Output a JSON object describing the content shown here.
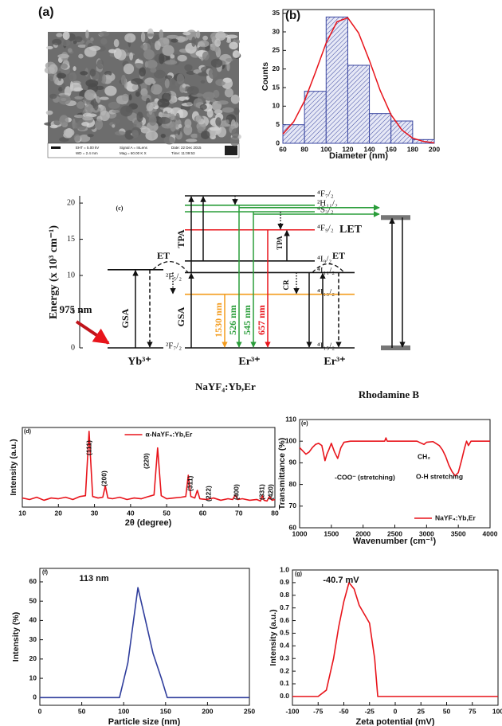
{
  "sem": {
    "label": "(a)",
    "info": [
      "EHT = 5.00 kV",
      "WD = 2.4 mm",
      "Signal A = InLens",
      "Mag = 60.00 K X",
      "Date: 22 Dec 2015",
      "Time: 11:09:53"
    ]
  },
  "energy_diagram": {
    "ylabel": "Energy (x 10³ cm⁻¹)",
    "ylim": [
      0,
      21
    ],
    "yticks": [
      0,
      5,
      10,
      15,
      20
    ],
    "levels": [
      {
        "column": "yb",
        "label": "²F₇/₂",
        "energy": 0,
        "color": "#111111"
      },
      {
        "column": "yb",
        "label": "²F₅/₂",
        "energy": 10.8,
        "color": "#111111"
      },
      {
        "column": "er",
        "label": "⁴I₁₅/₂",
        "energy": 0,
        "color": "#111111"
      },
      {
        "column": "er",
        "label": "⁴I₁₃/₂",
        "energy": 7.4,
        "color": "#f39c1e"
      },
      {
        "column": "er",
        "label": "⁴I₁₁/₂",
        "energy": 10.4,
        "color": "#111111"
      },
      {
        "column": "er",
        "label": "⁴I₉/₂",
        "energy": 12,
        "color": "#111111"
      },
      {
        "column": "er",
        "label": "⁴F₉/₂",
        "energy": 16.3,
        "color": "#e8141b"
      },
      {
        "column": "er",
        "label": "⁴S₃/₂",
        "energy": 18.8,
        "color": "#2a9d3a"
      },
      {
        "column": "er",
        "label": "²H₁₁/₂",
        "energy": 19.7,
        "color": "#2a9d3a"
      },
      {
        "column": "er",
        "label": "⁴F₇/₂",
        "energy": 21,
        "color": "#111111"
      },
      {
        "column": "er2",
        "energy": 0,
        "color": "#111111"
      },
      {
        "column": "er2",
        "energy": 7.4,
        "color": "#f39c1e"
      },
      {
        "column": "er2",
        "energy": 10.4,
        "color": "#111111"
      },
      {
        "column": "rh",
        "energy": 0,
        "color": "#777777"
      },
      {
        "column": "rh",
        "energy": 18,
        "color": "#777777"
      }
    ],
    "texts": [
      "(c)",
      "ET",
      "ET",
      "GSA",
      "GSA",
      "TPA",
      "TPA",
      "LET",
      "CR",
      "975 nm",
      "Yb³⁺",
      "Er³⁺",
      "Er³⁺",
      "NaYF₄:Yb,Er",
      "Rhodamine B"
    ],
    "emission_labels": [
      {
        "text": "1530 nm",
        "color": "#f39c1e"
      },
      {
        "text": "526 nm",
        "color": "#2a9d3a"
      },
      {
        "text": "545 nm",
        "color": "#2a9d3a"
      },
      {
        "text": "657 nm",
        "color": "#e8141b"
      }
    ]
  },
  "chart_data": [
    {
      "type": "histogram",
      "panel": "(b)",
      "xlabel": "Diameter (nm)",
      "ylabel": "Counts",
      "bins": [
        60,
        80,
        100,
        120,
        140,
        160,
        180,
        200
      ],
      "values": [
        5,
        14,
        34,
        21,
        8,
        6,
        1
      ],
      "color": "#3a46a0",
      "fit": {
        "x": [
          60,
          70,
          80,
          90,
          100,
          110,
          120,
          130,
          140,
          150,
          160,
          170,
          180,
          190,
          200
        ],
        "values": [
          2.5,
          5.8,
          11.4,
          19,
          27,
          32.7,
          33.8,
          29.7,
          22.3,
          14.2,
          7.7,
          3.6,
          1.4,
          0.5,
          0.1
        ],
        "color": "#e8141b"
      },
      "xlim": [
        60,
        200
      ],
      "xticks": [
        60,
        80,
        100,
        120,
        140,
        160,
        180,
        200
      ],
      "ylim": [
        0,
        36
      ],
      "yticks": [
        0,
        5,
        10,
        15,
        20,
        25,
        30,
        35
      ]
    },
    {
      "type": "line",
      "panel": "(d)",
      "xlabel": "2θ (degree)",
      "ylabel": "Intensity (a.u.)",
      "x": [
        10,
        12,
        14,
        16,
        18,
        20,
        22,
        24,
        26,
        27.5,
        28.5,
        29.5,
        31,
        32.3,
        33,
        33.7,
        35,
        37,
        39,
        41,
        43,
        45,
        46.5,
        47.5,
        48.5,
        50,
        52,
        54,
        55.3,
        56,
        56.7,
        57.8,
        58.5,
        59.2,
        61,
        63,
        65,
        67,
        68.3,
        69,
        69.7,
        71,
        73,
        75,
        76,
        76.5,
        77,
        77.8,
        78.5,
        79.2,
        80
      ],
      "series": [
        {
          "name": "α-NaYF₄:Yb,Er",
          "color": "#e8141b",
          "values": [
            12,
            10,
            13,
            9,
            12,
            11,
            13,
            10,
            14,
            15,
            100,
            14,
            12,
            13,
            28,
            12,
            11,
            13,
            10,
            12,
            11,
            14,
            16,
            78,
            15,
            11,
            12,
            13,
            14,
            42,
            14,
            12,
            22,
            11,
            10,
            12,
            9,
            11,
            10,
            16,
            10,
            11,
            9,
            10,
            8,
            15,
            9,
            8,
            14,
            9,
            10
          ]
        }
      ],
      "annotations": [
        "(111)",
        "(200)",
        "(220)",
        "(311)",
        "(222)",
        "(400)",
        "(331)",
        "(420)"
      ],
      "legend": "top-center",
      "xlim": [
        10,
        80
      ],
      "xticks": [
        10,
        20,
        30,
        40,
        50,
        60,
        70,
        80
      ],
      "ylim": [
        0,
        105
      ]
    },
    {
      "type": "line",
      "panel": "(e)",
      "xlabel": "Wavenumber (cm⁻¹)",
      "ylabel": "Transmittance (%)",
      "x": [
        1000,
        1050,
        1100,
        1150,
        1200,
        1250,
        1300,
        1350,
        1400,
        1430,
        1460,
        1500,
        1550,
        1600,
        1650,
        1700,
        1800,
        2000,
        2200,
        2340,
        2360,
        2380,
        2500,
        2700,
        2850,
        2920,
        2960,
        3000,
        3100,
        3200,
        3250,
        3300,
        3350,
        3400,
        3450,
        3500,
        3550,
        3600,
        3630,
        3660,
        3700,
        3800,
        4000
      ],
      "series": [
        {
          "name": "NaYF₄:Yb,Er",
          "color": "#e8141b",
          "values": [
            97,
            95.5,
            94,
            95,
            97,
            98.5,
            99,
            98,
            91,
            94,
            96,
            99,
            95,
            92,
            97,
            99.5,
            100,
            100,
            100,
            100,
            101.5,
            100,
            100,
            100,
            100,
            99,
            98.5,
            99.5,
            99.8,
            98,
            96,
            93,
            89,
            86,
            84,
            85.5,
            91,
            97,
            100,
            98,
            100,
            100,
            100
          ]
        }
      ],
      "annotations": [
        "-COO⁻ (stretching)",
        "CH₂",
        "O-H stretching"
      ],
      "legend": "lower-right",
      "xlim": [
        1000,
        4000
      ],
      "xticks": [
        1000,
        1500,
        2000,
        2500,
        3000,
        3500,
        4000
      ],
      "ylim": [
        60,
        110
      ],
      "yticks": [
        60,
        70,
        80,
        90,
        100,
        110
      ]
    },
    {
      "type": "line",
      "panel": "(f)",
      "xlabel": "Particle size (nm)",
      "ylabel": "Intensity (%)",
      "x": [
        0,
        90,
        95,
        105,
        117,
        125,
        135,
        145,
        152,
        160,
        250
      ],
      "series": [
        {
          "color": "#2f3d9c",
          "values": [
            0,
            0,
            0,
            18,
            57,
            42,
            23,
            10,
            0,
            0,
            0
          ]
        }
      ],
      "annotations": [
        "113 nm"
      ],
      "xlim": [
        0,
        250
      ],
      "xticks": [
        0,
        50,
        100,
        150,
        200,
        250
      ],
      "ylim": [
        -4,
        67
      ],
      "yticks": [
        0,
        10,
        20,
        30,
        40,
        50,
        60
      ]
    },
    {
      "type": "line",
      "panel": "(g)",
      "xlabel": "Zeta potential (mV)",
      "ylabel": "Intensity (a.u.)",
      "x": [
        -100,
        -75,
        -67,
        -60,
        -55,
        -50,
        -45,
        -40,
        -35,
        -30,
        -25,
        -20,
        -17,
        0,
        100
      ],
      "series": [
        {
          "color": "#e8141b",
          "values": [
            0,
            0,
            0.05,
            0.3,
            0.55,
            0.75,
            0.9,
            0.85,
            0.72,
            0.65,
            0.58,
            0.3,
            0,
            0,
            0
          ]
        }
      ],
      "annotations": [
        "-40.7 mV"
      ],
      "xlim": [
        -100,
        100
      ],
      "xticks": [
        -100,
        -75,
        -50,
        -25,
        0,
        25,
        50,
        75,
        100
      ],
      "ylim": [
        -0.07,
        1.0
      ],
      "yticks": [
        {
          "value": 0,
          "label": "0.0"
        },
        0.1,
        0.2,
        0.3,
        0.4,
        0.5,
        0.6,
        0.7,
        0.8,
        0.9,
        {
          "value": 1,
          "label": "1.0"
        }
      ]
    }
  ]
}
